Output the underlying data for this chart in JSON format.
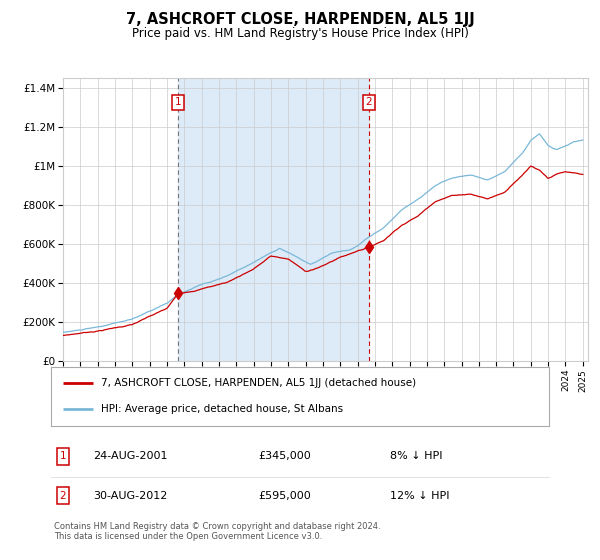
{
  "title": "7, ASHCROFT CLOSE, HARPENDEN, AL5 1JJ",
  "subtitle": "Price paid vs. HM Land Registry's House Price Index (HPI)",
  "ylabel_ticks": [
    "£0",
    "£200K",
    "£400K",
    "£600K",
    "£800K",
    "£1M",
    "£1.2M",
    "£1.4M"
  ],
  "ytick_values": [
    0,
    200000,
    400000,
    600000,
    800000,
    1000000,
    1200000,
    1400000
  ],
  "ylim": [
    0,
    1450000
  ],
  "x_start_year": 1995,
  "x_end_year": 2025,
  "sale1_date": 2001.646,
  "sale1_price": 345000,
  "sale1_label": "24-AUG-2001",
  "sale1_pct": "8% ↓ HPI",
  "sale2_date": 2012.66,
  "sale2_price": 595000,
  "sale2_label": "30-AUG-2012",
  "sale2_pct": "12% ↓ HPI",
  "hpi_color": "#7ab8d9",
  "price_color": "#cc0000",
  "bg_color": "#ddeaf7",
  "plot_bg": "#ffffff",
  "grid_color": "#cccccc",
  "vline1_color": "#777777",
  "vline2_color": "#cc0000",
  "legend1": "7, ASHCROFT CLOSE, HARPENDEN, AL5 1JJ (detached house)",
  "legend2": "HPI: Average price, detached house, St Albans",
  "footnote1": "Contains HM Land Registry data © Crown copyright and database right 2024.",
  "footnote2": "This data is licensed under the Open Government Licence v3.0."
}
